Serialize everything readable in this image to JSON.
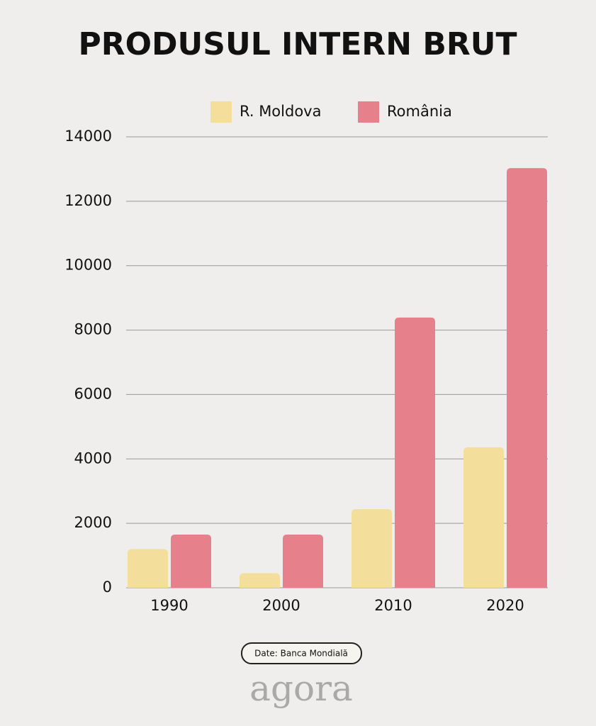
{
  "chart_data": {
    "type": "bar",
    "title": "PRODUSUL INTERN BRUT",
    "categories": [
      "1990",
      "2000",
      "2010",
      "2020"
    ],
    "series": [
      {
        "name": "R. Moldova",
        "color": "#f3df9b",
        "values": [
          1200,
          450,
          2440,
          4360
        ]
      },
      {
        "name": "România",
        "color": "#e6808a",
        "values": [
          1650,
          1650,
          8390,
          13030
        ]
      }
    ],
    "ylim": [
      0,
      14000
    ],
    "yticks": [
      0,
      2000,
      4000,
      6000,
      8000,
      10000,
      12000,
      14000
    ],
    "grid": true,
    "legend": "top",
    "source": "Date: Banca Mondială",
    "logo": "agora"
  }
}
